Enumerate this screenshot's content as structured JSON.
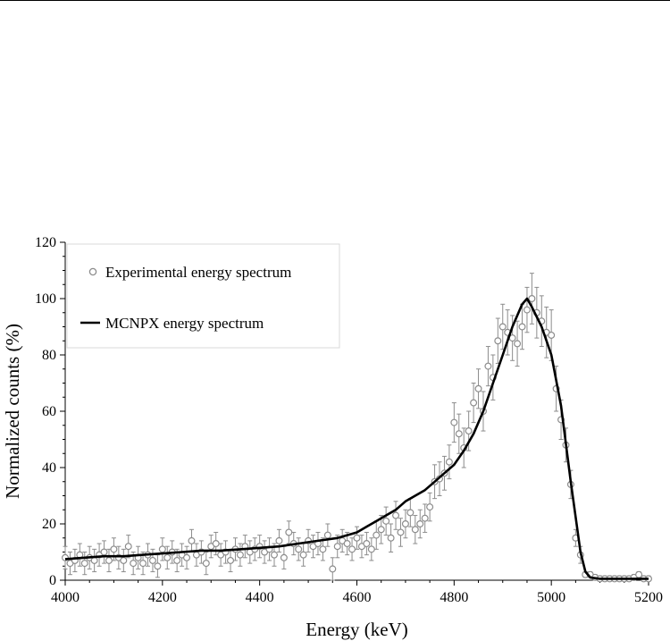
{
  "chart_data": {
    "type": "scatter",
    "title": "",
    "xlabel": "Energy (keV)",
    "ylabel": "Normalized counts (%)",
    "xlim": [
      4000,
      5200
    ],
    "ylim": [
      0,
      120
    ],
    "xticks": [
      4000,
      4200,
      4400,
      4600,
      4800,
      5000,
      5200
    ],
    "yticks": [
      0,
      20,
      40,
      60,
      80,
      100,
      120
    ],
    "grid": false,
    "legend_position": "top-left",
    "series": [
      {
        "name": "Experimental energy spectrum",
        "kind": "scatter-with-errorbars",
        "marker": "open-circle",
        "color": "#8c8c8c",
        "x": [
          4000,
          4010,
          4020,
          4030,
          4040,
          4050,
          4060,
          4070,
          4080,
          4090,
          4100,
          4110,
          4120,
          4130,
          4140,
          4150,
          4160,
          4170,
          4180,
          4190,
          4200,
          4210,
          4220,
          4230,
          4240,
          4250,
          4260,
          4270,
          4280,
          4290,
          4300,
          4310,
          4320,
          4330,
          4340,
          4350,
          4360,
          4370,
          4380,
          4390,
          4400,
          4410,
          4420,
          4430,
          4440,
          4450,
          4460,
          4470,
          4480,
          4490,
          4500,
          4510,
          4520,
          4530,
          4540,
          4550,
          4560,
          4570,
          4580,
          4590,
          4600,
          4610,
          4620,
          4630,
          4640,
          4650,
          4660,
          4670,
          4680,
          4690,
          4700,
          4710,
          4720,
          4730,
          4740,
          4750,
          4760,
          4770,
          4780,
          4790,
          4800,
          4810,
          4820,
          4830,
          4840,
          4850,
          4860,
          4870,
          4880,
          4890,
          4900,
          4910,
          4920,
          4930,
          4940,
          4950,
          4960,
          4970,
          4980,
          4990,
          5000,
          5010,
          5020,
          5030,
          5040,
          5050,
          5060,
          5070,
          5080,
          5090,
          5100,
          5110,
          5120,
          5130,
          5140,
          5150,
          5160,
          5170,
          5180,
          5190,
          5200
        ],
        "y": [
          8,
          6,
          7,
          9,
          6,
          8,
          7,
          9,
          10,
          7,
          11,
          8,
          7,
          12,
          6,
          8,
          6,
          9,
          7,
          5,
          11,
          8,
          10,
          7,
          9,
          8,
          14,
          9,
          10,
          6,
          12,
          13,
          9,
          10,
          7,
          11,
          9,
          12,
          10,
          11,
          12,
          10,
          11,
          9,
          14,
          8,
          17,
          13,
          11,
          9,
          14,
          12,
          13,
          11,
          16,
          4,
          12,
          14,
          13,
          11,
          15,
          12,
          13,
          11,
          16,
          18,
          21,
          15,
          23,
          17,
          20,
          24,
          18,
          20,
          22,
          26,
          35,
          36,
          38,
          42,
          56,
          52,
          47,
          53,
          63,
          68,
          60,
          76,
          72,
          85,
          90,
          88,
          86,
          84,
          90,
          96,
          100,
          95,
          92,
          88,
          87,
          68,
          57,
          48,
          34,
          15,
          9,
          2,
          2,
          1,
          0.5,
          0.5,
          0.5,
          0.5,
          0.5,
          0.5,
          0.5,
          1,
          2,
          0.5,
          0.5
        ],
        "yerr": [
          4,
          4,
          4,
          4,
          4,
          4,
          4,
          4,
          4,
          4,
          4,
          4,
          4,
          4,
          4,
          4,
          4,
          4,
          4,
          4,
          4,
          4,
          4,
          4,
          4,
          4,
          4,
          4,
          4,
          4,
          4,
          4,
          4,
          4,
          4,
          4,
          4,
          4,
          4,
          4,
          4,
          4,
          4,
          4,
          4,
          4,
          4,
          4,
          4,
          4,
          4,
          4,
          4,
          4,
          4,
          4,
          4,
          4,
          4,
          4,
          4,
          4,
          4,
          4,
          5,
          5,
          5,
          5,
          5,
          5,
          5,
          5,
          5,
          5,
          5,
          5,
          6,
          6,
          6,
          6,
          7,
          7,
          7,
          7,
          7,
          7,
          7,
          7,
          8,
          8,
          8,
          8,
          8,
          8,
          8,
          8,
          9,
          9,
          9,
          9,
          9,
          8,
          7,
          6,
          5,
          3,
          3,
          1,
          1,
          1,
          1,
          1,
          1,
          1,
          1,
          1,
          1,
          1,
          1,
          1,
          1
        ]
      },
      {
        "name": "MCNPX energy spectrum",
        "kind": "line",
        "color": "#000000",
        "x": [
          4000,
          4040,
          4080,
          4120,
          4160,
          4200,
          4240,
          4280,
          4320,
          4360,
          4400,
          4440,
          4480,
          4520,
          4560,
          4600,
          4620,
          4640,
          4660,
          4680,
          4700,
          4720,
          4740,
          4760,
          4780,
          4800,
          4820,
          4840,
          4860,
          4880,
          4900,
          4920,
          4940,
          4950,
          4960,
          4980,
          5000,
          5020,
          5040,
          5060,
          5070,
          5080,
          5100,
          5150,
          5200
        ],
        "y": [
          7.5,
          8,
          8.5,
          8.5,
          9,
          9.5,
          10,
          10.5,
          10.5,
          11,
          11.5,
          12,
          13,
          14,
          15,
          17,
          19,
          21,
          23,
          25,
          28,
          30,
          32,
          35,
          38,
          41,
          46,
          52,
          60,
          70,
          80,
          90,
          98,
          100,
          97,
          90,
          80,
          62,
          35,
          10,
          3,
          1,
          0.5,
          0.5,
          0.5
        ]
      }
    ]
  }
}
